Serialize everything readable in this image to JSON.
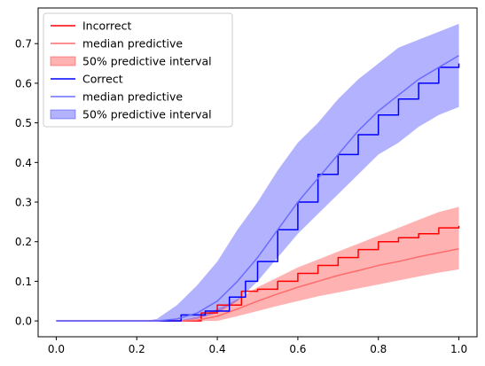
{
  "chart_data": {
    "type": "line",
    "title": "",
    "xlabel": "",
    "ylabel": "",
    "xlim": [
      -0.045,
      1.045
    ],
    "ylim": [
      -0.04,
      0.79
    ],
    "xticks": [
      0.0,
      0.2,
      0.4,
      0.6,
      0.8,
      1.0
    ],
    "xtick_labels": [
      "0.0",
      "0.2",
      "0.4",
      "0.6",
      "0.8",
      "1.0"
    ],
    "yticks": [
      0.0,
      0.1,
      0.2,
      0.3,
      0.4,
      0.5,
      0.6,
      0.7
    ],
    "ytick_labels": [
      "0.0",
      "0.1",
      "0.2",
      "0.3",
      "0.4",
      "0.5",
      "0.6",
      "0.7"
    ],
    "grid": false,
    "legend_position": "top-left",
    "series": [
      {
        "name": "Incorrect",
        "kind": "empirical_step",
        "color": "#ff0000",
        "points": [
          [
            0.0,
            0.0
          ],
          [
            0.35,
            0.0
          ],
          [
            0.36,
            0.02
          ],
          [
            0.4,
            0.04
          ],
          [
            0.46,
            0.075
          ],
          [
            0.5,
            0.08
          ],
          [
            0.55,
            0.1
          ],
          [
            0.6,
            0.12
          ],
          [
            0.65,
            0.14
          ],
          [
            0.7,
            0.16
          ],
          [
            0.75,
            0.18
          ],
          [
            0.8,
            0.2
          ],
          [
            0.85,
            0.21
          ],
          [
            0.9,
            0.22
          ],
          [
            0.95,
            0.235
          ],
          [
            1.0,
            0.24
          ]
        ]
      },
      {
        "name": "median predictive",
        "kind": "median",
        "color": "#ff6b6b",
        "points": [
          [
            0.0,
            0.0
          ],
          [
            0.3,
            0.0
          ],
          [
            0.35,
            0.002
          ],
          [
            0.4,
            0.012
          ],
          [
            0.45,
            0.03
          ],
          [
            0.5,
            0.05
          ],
          [
            0.55,
            0.068
          ],
          [
            0.6,
            0.085
          ],
          [
            0.65,
            0.1
          ],
          [
            0.7,
            0.115
          ],
          [
            0.75,
            0.127
          ],
          [
            0.8,
            0.14
          ],
          [
            0.85,
            0.15
          ],
          [
            0.9,
            0.162
          ],
          [
            0.95,
            0.172
          ],
          [
            1.0,
            0.182
          ]
        ]
      },
      {
        "name": "50% predictive interval",
        "kind": "interval",
        "color": "#ff0000",
        "opacity": 0.3,
        "lower": [
          [
            0.0,
            0.0
          ],
          [
            0.3,
            0.0
          ],
          [
            0.4,
            0.0
          ],
          [
            0.45,
            0.012
          ],
          [
            0.5,
            0.025
          ],
          [
            0.55,
            0.038
          ],
          [
            0.6,
            0.05
          ],
          [
            0.65,
            0.062
          ],
          [
            0.7,
            0.072
          ],
          [
            0.75,
            0.082
          ],
          [
            0.8,
            0.092
          ],
          [
            0.85,
            0.102
          ],
          [
            0.9,
            0.112
          ],
          [
            0.95,
            0.122
          ],
          [
            1.0,
            0.13
          ]
        ],
        "upper": [
          [
            0.0,
            0.0
          ],
          [
            0.3,
            0.0
          ],
          [
            0.35,
            0.01
          ],
          [
            0.4,
            0.03
          ],
          [
            0.45,
            0.055
          ],
          [
            0.5,
            0.085
          ],
          [
            0.55,
            0.11
          ],
          [
            0.6,
            0.135
          ],
          [
            0.65,
            0.155
          ],
          [
            0.7,
            0.175
          ],
          [
            0.75,
            0.195
          ],
          [
            0.8,
            0.215
          ],
          [
            0.85,
            0.235
          ],
          [
            0.9,
            0.255
          ],
          [
            0.95,
            0.275
          ],
          [
            1.0,
            0.288
          ]
        ]
      },
      {
        "name": "Correct",
        "kind": "empirical_step",
        "color": "#0000ff",
        "points": [
          [
            0.0,
            0.0
          ],
          [
            0.3,
            0.0
          ],
          [
            0.31,
            0.015
          ],
          [
            0.37,
            0.025
          ],
          [
            0.43,
            0.06
          ],
          [
            0.47,
            0.1
          ],
          [
            0.5,
            0.15
          ],
          [
            0.55,
            0.23
          ],
          [
            0.6,
            0.3
          ],
          [
            0.65,
            0.37
          ],
          [
            0.7,
            0.42
          ],
          [
            0.75,
            0.47
          ],
          [
            0.8,
            0.52
          ],
          [
            0.85,
            0.56
          ],
          [
            0.9,
            0.6
          ],
          [
            0.95,
            0.64
          ],
          [
            1.0,
            0.65
          ]
        ]
      },
      {
        "name": "median predictive",
        "kind": "median",
        "color": "#6b6bff",
        "points": [
          [
            0.0,
            0.0
          ],
          [
            0.25,
            0.0
          ],
          [
            0.3,
            0.005
          ],
          [
            0.35,
            0.02
          ],
          [
            0.4,
            0.05
          ],
          [
            0.45,
            0.1
          ],
          [
            0.5,
            0.16
          ],
          [
            0.55,
            0.23
          ],
          [
            0.6,
            0.3
          ],
          [
            0.65,
            0.36
          ],
          [
            0.7,
            0.42
          ],
          [
            0.75,
            0.48
          ],
          [
            0.8,
            0.53
          ],
          [
            0.85,
            0.57
          ],
          [
            0.9,
            0.61
          ],
          [
            0.95,
            0.64
          ],
          [
            1.0,
            0.67
          ]
        ]
      },
      {
        "name": "50% predictive interval",
        "kind": "interval",
        "color": "#0000ff",
        "opacity": 0.3,
        "lower": [
          [
            0.0,
            0.0
          ],
          [
            0.3,
            0.0
          ],
          [
            0.35,
            0.005
          ],
          [
            0.4,
            0.02
          ],
          [
            0.45,
            0.05
          ],
          [
            0.5,
            0.1
          ],
          [
            0.55,
            0.16
          ],
          [
            0.6,
            0.22
          ],
          [
            0.65,
            0.27
          ],
          [
            0.7,
            0.32
          ],
          [
            0.75,
            0.37
          ],
          [
            0.8,
            0.42
          ],
          [
            0.85,
            0.45
          ],
          [
            0.9,
            0.49
          ],
          [
            0.95,
            0.52
          ],
          [
            1.0,
            0.54
          ]
        ],
        "upper": [
          [
            0.0,
            0.0
          ],
          [
            0.22,
            0.0
          ],
          [
            0.25,
            0.005
          ],
          [
            0.3,
            0.04
          ],
          [
            0.35,
            0.09
          ],
          [
            0.4,
            0.15
          ],
          [
            0.45,
            0.23
          ],
          [
            0.5,
            0.3
          ],
          [
            0.55,
            0.38
          ],
          [
            0.6,
            0.45
          ],
          [
            0.65,
            0.5
          ],
          [
            0.7,
            0.56
          ],
          [
            0.75,
            0.61
          ],
          [
            0.8,
            0.65
          ],
          [
            0.85,
            0.69
          ],
          [
            0.9,
            0.71
          ],
          [
            0.95,
            0.73
          ],
          [
            1.0,
            0.75
          ]
        ]
      }
    ]
  }
}
